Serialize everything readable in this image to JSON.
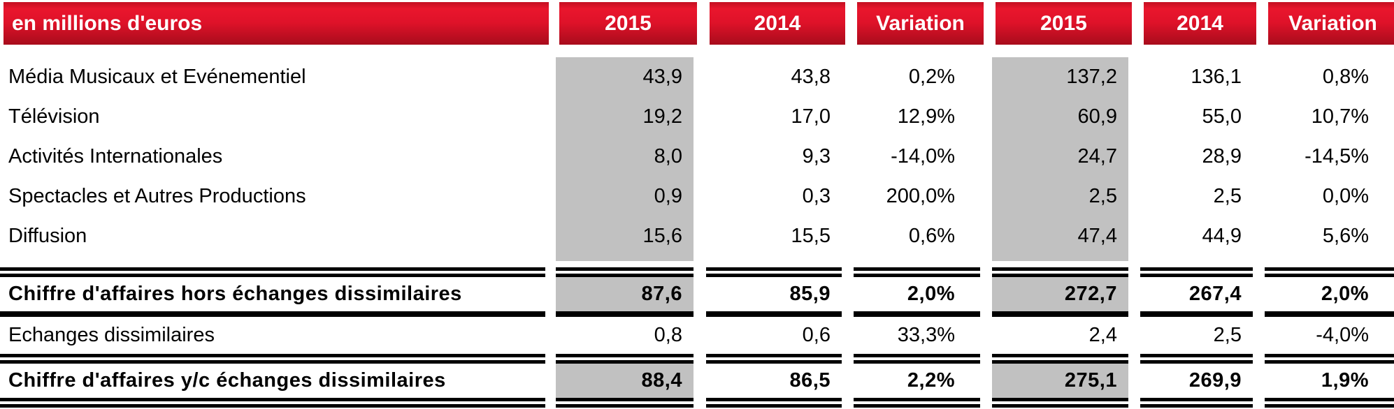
{
  "table": {
    "title_cell": "en millions d'euros",
    "columns": [
      {
        "label": "2015"
      },
      {
        "label": "2014"
      },
      {
        "label": "Variation"
      },
      {
        "label": "2015"
      },
      {
        "label": "2014"
      },
      {
        "label": "Variation"
      }
    ],
    "rows": [
      {
        "label": "Média Musicaux et Evénementiel",
        "values": [
          "43,9",
          "43,8",
          "0,2%",
          "137,2",
          "136,1",
          "0,8%"
        ],
        "emphasis": false
      },
      {
        "label": "Télévision",
        "values": [
          "19,2",
          "17,0",
          "12,9%",
          "60,9",
          "55,0",
          "10,7%"
        ],
        "emphasis": false
      },
      {
        "label": "Activités Internationales",
        "values": [
          "8,0",
          "9,3",
          "-14,0%",
          "24,7",
          "28,9",
          "-14,5%"
        ],
        "emphasis": false
      },
      {
        "label": "Spectacles et Autres Productions",
        "values": [
          "0,9",
          "0,3",
          "200,0%",
          "2,5",
          "2,5",
          "0,0%"
        ],
        "emphasis": false
      },
      {
        "label": "Diffusion",
        "values": [
          "15,6",
          "15,5",
          "0,6%",
          "47,4",
          "44,9",
          "5,6%"
        ],
        "emphasis": false
      },
      {
        "label": "Chiffre d'affaires hors échanges dissimilaires",
        "values": [
          "87,6",
          "85,9",
          "2,0%",
          "272,7",
          "267,4",
          "2,0%"
        ],
        "emphasis": true
      },
      {
        "label": "Echanges dissimilaires",
        "values": [
          "0,8",
          "0,6",
          "33,3%",
          "2,4",
          "2,5",
          "-4,0%"
        ],
        "emphasis": false
      },
      {
        "label": "Chiffre d'affaires y/c échanges dissimilaires",
        "values": [
          "88,4",
          "86,5",
          "2,2%",
          "275,1",
          "269,9",
          "1,9%"
        ],
        "emphasis": true
      }
    ],
    "colors": {
      "header_red_top": "#e9162d",
      "header_red_bottom": "#a80c1c",
      "shaded_column": "#c1c1c1",
      "rule_line": "#000000",
      "header_text": "#ffffff"
    }
  }
}
